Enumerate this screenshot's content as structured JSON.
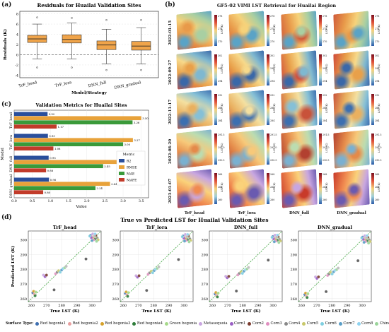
{
  "panel_a": {
    "label": "(a)",
    "chart_data": {
      "type": "box",
      "title": "Residuals for Huailai Validation Sites",
      "xlabel": "Model/Strategy",
      "ylabel": "Residuals (K)",
      "categories": [
        "TrF_head",
        "TrF_lora",
        "DNN_full",
        "DNN_gradual"
      ],
      "boxes": [
        {
          "min": -0.8,
          "q1": 2.4,
          "median": 3.1,
          "q3": 3.8,
          "max": 6.0,
          "outliers": [
            7.3,
            -2.5
          ]
        },
        {
          "min": -0.8,
          "q1": 2.3,
          "median": 3.0,
          "q3": 3.9,
          "max": 6.2,
          "outliers": [
            7.2,
            -2.5
          ]
        },
        {
          "min": -1.8,
          "q1": 1.0,
          "median": 1.9,
          "q3": 2.7,
          "max": 5.0,
          "outliers": [
            6.8,
            -3.0
          ]
        },
        {
          "min": -1.8,
          "q1": 0.9,
          "median": 1.7,
          "q3": 2.6,
          "max": 5.3,
          "outliers": [
            6.8,
            -3.0
          ]
        }
      ],
      "yticks": [
        -4,
        -2,
        0,
        2,
        4,
        6,
        8
      ],
      "ylim": [
        -4.5,
        8.5
      ],
      "reference_line": 0
    }
  },
  "panel_b": {
    "label": "(b)",
    "title": "GF5-02 VIMI LST Retrieval for Huailai Region",
    "rows": [
      "2022-01-15",
      "2022-09-27",
      "2022-11-17",
      "2022-08-20",
      "2023-01-07"
    ],
    "columns": [
      "TrF_head",
      "TrF_lora",
      "DNN_full",
      "DNN_gradual"
    ],
    "colorbar_label": "LST (K)",
    "colorbar_ticks": [
      [
        "278",
        "274",
        "270"
      ],
      [
        "302",
        "298",
        "294"
      ],
      [
        "292",
        "288",
        "284"
      ],
      [
        "291.5",
        "291.0",
        "290.5"
      ],
      [
        "268",
        "264",
        "260"
      ]
    ]
  },
  "panel_c": {
    "label": "(c)",
    "chart_data": {
      "type": "bar",
      "orientation": "horizontal",
      "title": "Validation Metrics for Huailai Sites",
      "xlabel": "Value",
      "ylabel": "Model",
      "categories": [
        "TrF_head",
        "TrF_lora",
        "DNN_full",
        "DNN_gradual"
      ],
      "series": [
        {
          "name": "R2",
          "color": "#2a4f9c",
          "values": [
            0.92,
            0.93,
            0.95,
            0.96
          ]
        },
        {
          "name": "RMSE",
          "color": "#e8a23a",
          "values": [
            3.5,
            3.27,
            2.91,
            2.64
          ]
        },
        {
          "name": "MAE",
          "color": "#3a9a3a",
          "values": [
            3.26,
            3.0,
            2.45,
            2.24
          ]
        },
        {
          "name": "MAPE",
          "color": "#c23b2a",
          "values": [
            1.17,
            1.08,
            0.88,
            0.8
          ]
        }
      ],
      "value_labels": [
        [
          "0.92",
          "3.50",
          "3.26",
          "1.17"
        ],
        [
          "0.93",
          "3.27",
          "3.00",
          "1.08"
        ],
        [
          "0.95",
          "2.91",
          "2.45",
          "0.88"
        ],
        [
          "0.96",
          "2.64",
          "2.24",
          "0.80"
        ]
      ],
      "xticks": [
        "0.0",
        "0.5",
        "1.0",
        "1.5",
        "2.0",
        "2.5",
        "3.0",
        "3.5"
      ],
      "xlim": [
        0,
        3.7
      ],
      "legend_title": "Metric",
      "legend_position": "right"
    }
  },
  "panel_d": {
    "label": "(d)",
    "title": "True vs Predicted LST for Huailai Validation Sites",
    "xlabel": "True LST (K)",
    "ylabel": "Predicted LST (K)",
    "xticks": [
      260,
      270,
      280,
      290,
      300
    ],
    "yticks": [
      260,
      270,
      280,
      290,
      300
    ],
    "lim": [
      258,
      306
    ],
    "subplots": [
      "TrF_head",
      "TrF_lora",
      "DNN_full",
      "DNN_gradual"
    ],
    "chart_data": {
      "type": "scatter",
      "points": [
        [
          261,
          264,
          0
        ],
        [
          262,
          263,
          1
        ],
        [
          261.5,
          265,
          2
        ],
        [
          262.5,
          262,
          3
        ],
        [
          263,
          264.5,
          4
        ],
        [
          268,
          276,
          5
        ],
        [
          269,
          275,
          6
        ],
        [
          270,
          276,
          7
        ],
        [
          276,
          277,
          8
        ],
        [
          277,
          278,
          9
        ],
        [
          278,
          279,
          10
        ],
        [
          279,
          278,
          11
        ],
        [
          280,
          279.5,
          12
        ],
        [
          281,
          280.5,
          13
        ],
        [
          282,
          281,
          14
        ],
        [
          283,
          282,
          15
        ],
        [
          296,
          287,
          16
        ],
        [
          299,
          303,
          0
        ],
        [
          300,
          302,
          1
        ],
        [
          301,
          301,
          2
        ],
        [
          302,
          300.5,
          3
        ],
        [
          303,
          302,
          4
        ],
        [
          300.5,
          304,
          5
        ],
        [
          299.5,
          301.5,
          6
        ],
        [
          302.5,
          303,
          7
        ],
        [
          301,
          300,
          8
        ],
        [
          303.5,
          301,
          9
        ],
        [
          304,
          300,
          10
        ],
        [
          298.5,
          302.5,
          11
        ],
        [
          300,
          299.5,
          12
        ],
        [
          302,
          304,
          13
        ],
        [
          303,
          299,
          14
        ],
        [
          301.5,
          302.5,
          15
        ],
        [
          275,
          266,
          16
        ]
      ]
    },
    "legend_title": "Surface Type:",
    "surface_types": [
      {
        "name": "Red begonia1",
        "color": "#3f6fb0"
      },
      {
        "name": "Red begonia2",
        "color": "#e8a0a0"
      },
      {
        "name": "Red begonia3",
        "color": "#d6a12a"
      },
      {
        "name": "Red begonia4",
        "color": "#2e7d3a"
      },
      {
        "name": "Green begonia",
        "color": "#a6d98a"
      },
      {
        "name": "Metasequoia",
        "color": "#c9a6e0"
      },
      {
        "name": "Corn1",
        "color": "#9a5fc4"
      },
      {
        "name": "Corn2",
        "color": "#7a3b2e"
      },
      {
        "name": "Corn3",
        "color": "#e08fc0"
      },
      {
        "name": "Corn4",
        "color": "#888888"
      },
      {
        "name": "Corn5",
        "color": "#c8c86a"
      },
      {
        "name": "Corn6",
        "color": "#7fcfe0"
      },
      {
        "name": "Corn7",
        "color": "#5a9ec7"
      },
      {
        "name": "Corn8",
        "color": "#8fd3f0"
      },
      {
        "name": "Chinese pine",
        "color": "#9ad49a"
      },
      {
        "name": "",
        "color": "#bbbbbb"
      },
      {
        "name": "",
        "color": "#555555"
      }
    ]
  }
}
